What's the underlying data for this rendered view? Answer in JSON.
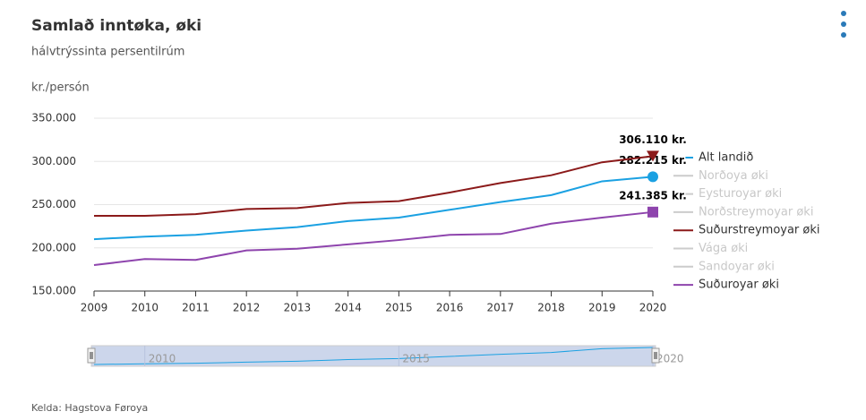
{
  "chart_data": {
    "type": "line",
    "title": "Samlað inntøka, øki",
    "subtitle": "hálvtrýssinta persentilrúm",
    "y_label": "kr./persón",
    "source": "Kelda: Hagstova Føroya",
    "x": [
      2009,
      2010,
      2011,
      2012,
      2013,
      2014,
      2015,
      2016,
      2017,
      2018,
      2019,
      2020
    ],
    "xlim": [
      2009,
      2020
    ],
    "xticks": [
      2009,
      2010,
      2011,
      2012,
      2013,
      2014,
      2015,
      2016,
      2017,
      2018,
      2019,
      2020
    ],
    "ylim": [
      150000,
      350000
    ],
    "yticks": [
      {
        "value": 150000,
        "label": "150.000"
      },
      {
        "value": 200000,
        "label": "200.000"
      },
      {
        "value": 250000,
        "label": "250.000"
      },
      {
        "value": 300000,
        "label": "300.000"
      },
      {
        "value": 350000,
        "label": "350.000"
      }
    ],
    "grid": true,
    "legend": "right",
    "series": [
      {
        "name": "Alt landið",
        "color": "#1ba1e2",
        "marker": "circle",
        "values": [
          210000,
          213000,
          215000,
          220000,
          224000,
          231000,
          235000,
          244000,
          253000,
          261000,
          277000,
          282215
        ],
        "value_labels": [
          null,
          null,
          null,
          null,
          null,
          null,
          null,
          null,
          null,
          null,
          null,
          "282.215 kr."
        ]
      },
      {
        "name": "Norðoya øki",
        "color": "#cccccc",
        "visible": false
      },
      {
        "name": "Eysturoyar øki",
        "color": "#cccccc",
        "visible": false
      },
      {
        "name": "Norðstreymoyar øki",
        "color": "#cccccc",
        "visible": false
      },
      {
        "name": "Suðurstreymoyar øki",
        "color": "#8b1a1a",
        "marker": "triangle-down",
        "values": [
          237000,
          237000,
          239000,
          245000,
          246000,
          252000,
          254000,
          264000,
          275000,
          284000,
          299000,
          306110
        ],
        "value_labels": [
          null,
          null,
          null,
          null,
          null,
          null,
          null,
          null,
          null,
          null,
          null,
          "306.110 kr."
        ]
      },
      {
        "name": "Vága øki",
        "color": "#cccccc",
        "visible": false
      },
      {
        "name": "Sandoyar øki",
        "color": "#cccccc",
        "visible": false
      },
      {
        "name": "Suðuroyar øki",
        "color": "#8e44ad",
        "marker": "square",
        "values": [
          180000,
          187000,
          186000,
          197000,
          199000,
          204000,
          209000,
          215000,
          216000,
          228000,
          235000,
          241385
        ],
        "value_labels": [
          null,
          null,
          null,
          null,
          null,
          null,
          null,
          null,
          null,
          null,
          null,
          "241.385 kr."
        ]
      }
    ],
    "navigator": {
      "xticks": [
        2010,
        2015,
        2020
      ]
    }
  }
}
